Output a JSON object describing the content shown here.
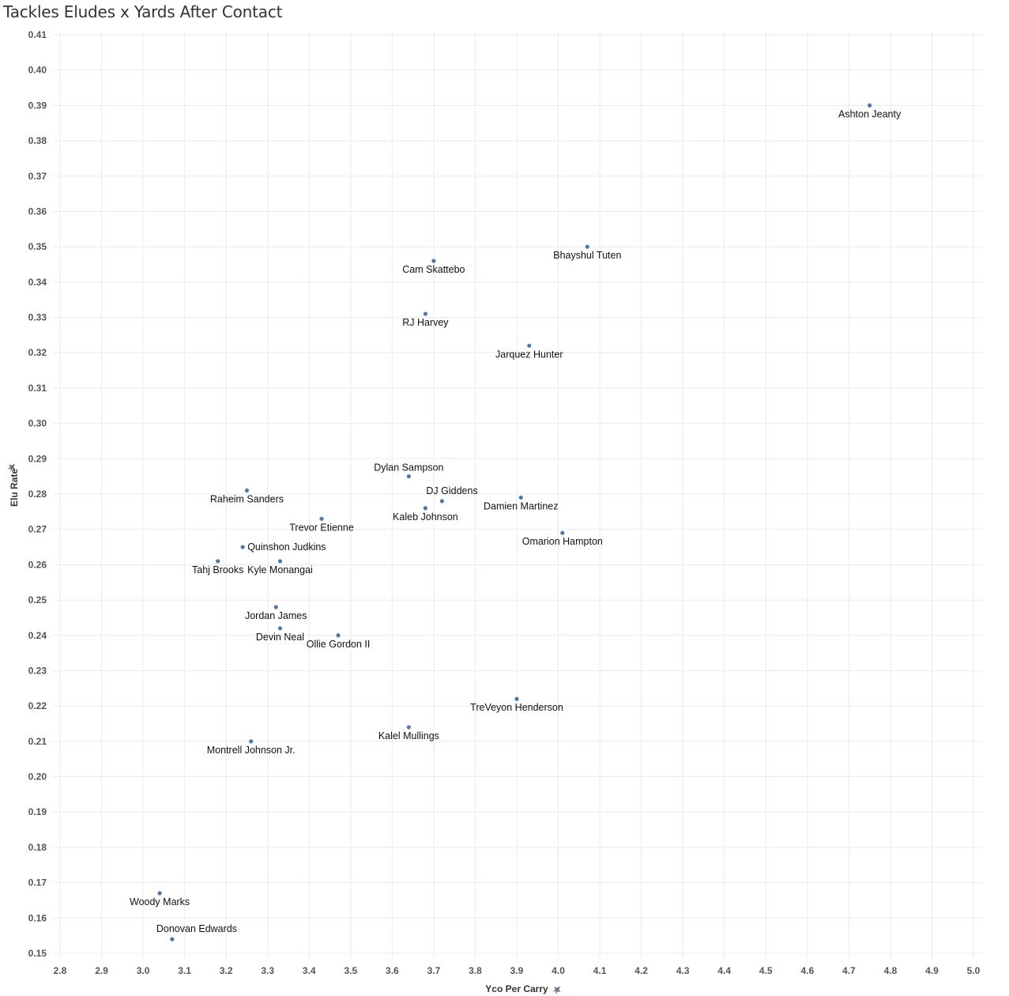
{
  "chart_data": {
    "type": "scatter",
    "title": "Tackles Eludes x Yards After Contact",
    "xlabel": "Yco Per Carry",
    "ylabel": "Elu Rate",
    "xlim": [
      2.8,
      5.0
    ],
    "ylim": [
      0.15,
      0.41
    ],
    "grid": true,
    "point_color": "#4e79a7",
    "x_ticks": [
      "2.8",
      "2.9",
      "3.0",
      "3.1",
      "3.2",
      "3.3",
      "3.4",
      "3.5",
      "3.6",
      "3.7",
      "3.8",
      "3.9",
      "4.0",
      "4.1",
      "4.2",
      "4.3",
      "4.4",
      "4.5",
      "4.6",
      "4.7",
      "4.8",
      "4.9",
      "5.0"
    ],
    "y_ticks": [
      "0.15",
      "0.16",
      "0.17",
      "0.18",
      "0.19",
      "0.20",
      "0.21",
      "0.22",
      "0.23",
      "0.24",
      "0.25",
      "0.26",
      "0.27",
      "0.28",
      "0.29",
      "0.30",
      "0.31",
      "0.32",
      "0.33",
      "0.34",
      "0.35",
      "0.36",
      "0.37",
      "0.38",
      "0.39",
      "0.40",
      "0.41"
    ],
    "points": [
      {
        "label": "Ashton Jeanty",
        "x": 4.75,
        "y": 0.39,
        "label_pos": "below"
      },
      {
        "label": "Bhayshul Tuten",
        "x": 4.07,
        "y": 0.35,
        "label_pos": "below"
      },
      {
        "label": "Cam Skattebo",
        "x": 3.7,
        "y": 0.346,
        "label_pos": "below"
      },
      {
        "label": "RJ Harvey",
        "x": 3.68,
        "y": 0.331,
        "label_pos": "below"
      },
      {
        "label": "Jarquez Hunter",
        "x": 3.93,
        "y": 0.322,
        "label_pos": "below"
      },
      {
        "label": "Dylan Sampson",
        "x": 3.64,
        "y": 0.285,
        "label_pos": "above"
      },
      {
        "label": "DJ Giddens",
        "x": 3.72,
        "y": 0.278,
        "label_pos": "above-right"
      },
      {
        "label": "Damien Martinez",
        "x": 3.91,
        "y": 0.279,
        "label_pos": "below"
      },
      {
        "label": "Kaleb Johnson",
        "x": 3.68,
        "y": 0.276,
        "label_pos": "below"
      },
      {
        "label": "Raheim Sanders",
        "x": 3.25,
        "y": 0.281,
        "label_pos": "below"
      },
      {
        "label": "Trevor Etienne",
        "x": 3.43,
        "y": 0.273,
        "label_pos": "below"
      },
      {
        "label": "Omarion Hampton",
        "x": 4.01,
        "y": 0.269,
        "label_pos": "below"
      },
      {
        "label": "Quinshon Judkins",
        "x": 3.24,
        "y": 0.265,
        "label_pos": "right"
      },
      {
        "label": "Tahj Brooks",
        "x": 3.18,
        "y": 0.261,
        "label_pos": "below"
      },
      {
        "label": "Kyle Monangai",
        "x": 3.33,
        "y": 0.261,
        "label_pos": "below"
      },
      {
        "label": "Jordan James",
        "x": 3.32,
        "y": 0.248,
        "label_pos": "below"
      },
      {
        "label": "Devin Neal",
        "x": 3.33,
        "y": 0.242,
        "label_pos": "below"
      },
      {
        "label": "Ollie Gordon II",
        "x": 3.47,
        "y": 0.24,
        "label_pos": "below"
      },
      {
        "label": "TreVeyon Henderson",
        "x": 3.9,
        "y": 0.222,
        "label_pos": "below"
      },
      {
        "label": "Kalel Mullings",
        "x": 3.64,
        "y": 0.214,
        "label_pos": "below"
      },
      {
        "label": "Montrell Johnson Jr.",
        "x": 3.26,
        "y": 0.21,
        "label_pos": "below"
      },
      {
        "label": "Woody Marks",
        "x": 3.04,
        "y": 0.167,
        "label_pos": "below"
      },
      {
        "label": "Donovan Edwards",
        "x": 3.07,
        "y": 0.154,
        "label_pos": "above-right"
      }
    ]
  }
}
